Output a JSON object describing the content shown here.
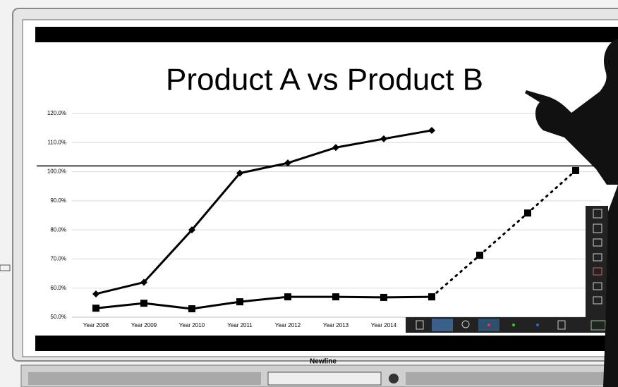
{
  "chart_data": {
    "type": "line",
    "title": "Product A vs Product B",
    "categories": [
      "Year 2008",
      "Year 2009",
      "Year 2010",
      "Year 2011",
      "Year 2012",
      "Year 2013",
      "Year 2014",
      null,
      null,
      null,
      null
    ],
    "series": [
      {
        "color": "#000000",
        "marker": "diamond",
        "dash": false,
        "values": [
          58,
          62,
          80,
          99.5,
          103,
          108.3,
          111.3,
          114.2,
          null,
          null,
          null
        ]
      },
      {
        "color": "#000000",
        "marker": "square",
        "dash": false,
        "values": [
          53.1,
          54.8,
          52.9,
          55.3,
          57,
          57,
          56.8,
          57,
          null,
          null,
          null
        ]
      },
      {
        "color": "#000000",
        "marker": "square",
        "dash": true,
        "values": [
          null,
          null,
          null,
          null,
          null,
          null,
          null,
          57,
          71.3,
          85.8,
          100.4
        ]
      }
    ],
    "ylim": [
      50,
      120
    ],
    "yticks": [
      {
        "value": 50,
        "label": "50.0%"
      },
      {
        "value": 60,
        "label": "60.0%"
      },
      {
        "value": 70,
        "label": "70.0%"
      },
      {
        "value": 80,
        "label": "80.0%"
      },
      {
        "value": 90,
        "label": "90.0%"
      },
      {
        "value": 100,
        "label": "100.0%"
      },
      {
        "value": 110,
        "label": "110.0%"
      },
      {
        "value": 120,
        "label": "120.0%"
      }
    ],
    "grid": true,
    "reference_line": 102
  },
  "brand": "Newline"
}
